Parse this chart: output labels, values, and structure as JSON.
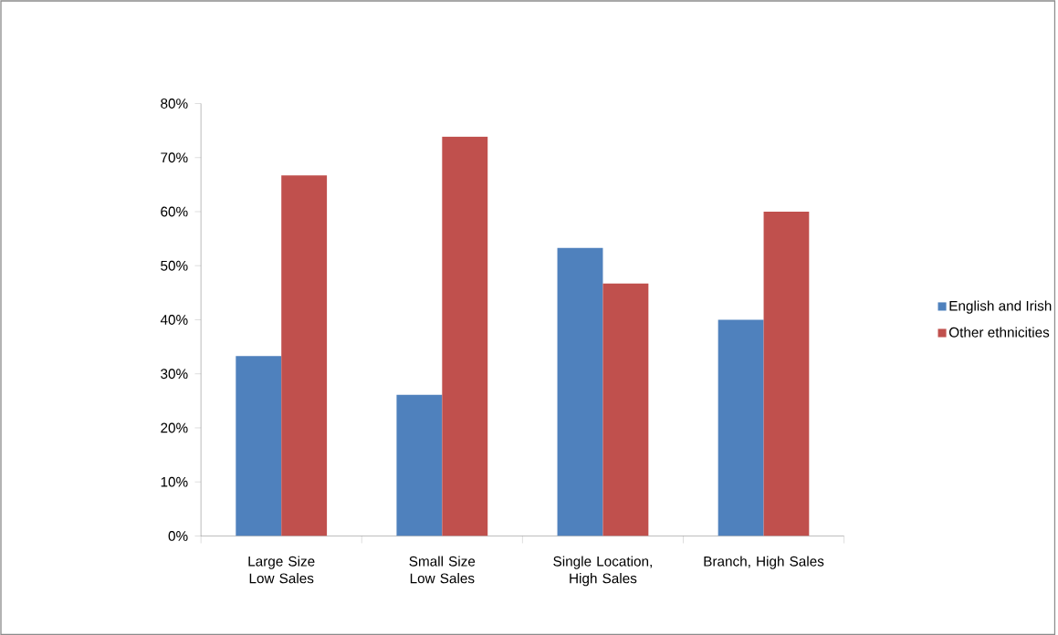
{
  "chart_data": {
    "type": "bar",
    "categories": [
      "Large Size Low Sales",
      "Small Size Low Sales",
      "Single Location, High Sales",
      "Branch, High Sales"
    ],
    "series": [
      {
        "name": "English and Irish",
        "color": "#4f81bd",
        "values": [
          33.3,
          26.1,
          53.3,
          40
        ]
      },
      {
        "name": "Other ethnicities",
        "color": "#c0504d",
        "values": [
          66.7,
          73.9,
          46.7,
          60
        ]
      }
    ],
    "ylim": [
      0,
      80
    ],
    "yticks": [
      {
        "value": 0,
        "label": "0%"
      },
      {
        "value": 10,
        "label": "10%"
      },
      {
        "value": 20,
        "label": "20%"
      },
      {
        "value": 30,
        "label": "30%"
      },
      {
        "value": 40,
        "label": "40%"
      },
      {
        "value": 50,
        "label": "50%"
      },
      {
        "value": 60,
        "label": "60%"
      },
      {
        "value": 70,
        "label": "70%"
      },
      {
        "value": 80,
        "label": "80%"
      }
    ],
    "grid": false,
    "legend": "right"
  }
}
